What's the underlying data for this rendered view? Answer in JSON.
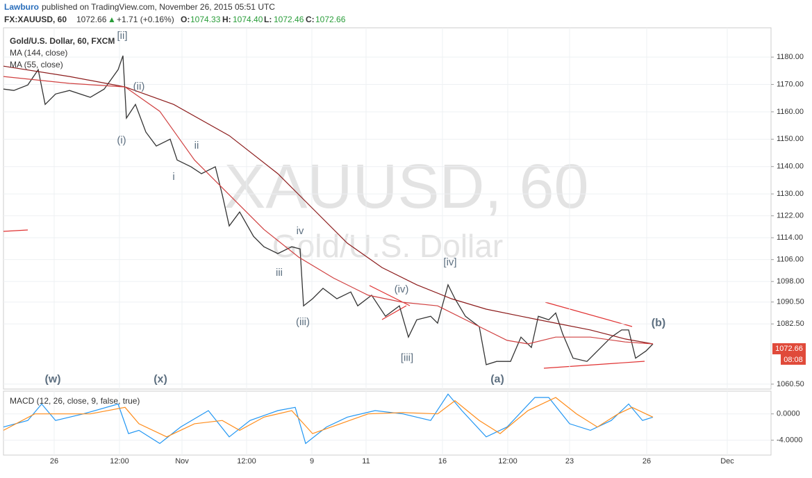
{
  "header": {
    "author": "Lawburo",
    "published": "published on TradingView.com, November 26, 2015 05:51 UTC",
    "symbol": "FX:XAUUSD, 60",
    "last": "1072.66",
    "arrow": "▲",
    "change": "+1.71 (+0.16%)",
    "o_label": "O:",
    "open": "1074.33",
    "h_label": "H:",
    "high": "1074.40",
    "l_label": "L:",
    "low": "1072.46",
    "c_label": "C:",
    "close": "1072.66",
    "countdown": "08:08"
  },
  "watermark": {
    "symbol": "XAUUSD, 60",
    "name": "Gold/U.S. Dollar"
  },
  "chart_data": [
    {
      "type": "line",
      "xlim": [
        0,
        1105
      ],
      "ylim": [
        1058.7,
        1190.7
      ],
      "xticks": [
        {
          "value": 73,
          "label": "26"
        },
        {
          "value": 167,
          "label": "12:00"
        },
        {
          "value": 257,
          "label": "Nov"
        },
        {
          "value": 350,
          "label": "12:00"
        },
        {
          "value": 444,
          "label": "9"
        },
        {
          "value": 522,
          "label": "11"
        },
        {
          "value": 632,
          "label": "16"
        },
        {
          "value": 726,
          "label": "12:00"
        },
        {
          "value": 815,
          "label": "23"
        },
        {
          "value": 926,
          "label": "26"
        },
        {
          "value": 1042,
          "label": "Dec"
        }
      ],
      "yticks": [
        {
          "value": 1180,
          "label": "1180.00"
        },
        {
          "value": 1170,
          "label": "1170.00"
        },
        {
          "value": 1160,
          "label": "1160.00"
        },
        {
          "value": 1150,
          "label": "1150.00"
        },
        {
          "value": 1140,
          "label": "1140.00"
        },
        {
          "value": 1130,
          "label": "1130.00"
        },
        {
          "value": 1122,
          "label": "1122.00"
        },
        {
          "value": 1114,
          "label": "1114.00"
        },
        {
          "value": 1106,
          "label": "1106.00"
        },
        {
          "value": 1098,
          "label": "1098.00"
        },
        {
          "value": 1090.5,
          "label": "1090.50"
        },
        {
          "value": 1082.5,
          "label": "1082.50"
        },
        {
          "value": 1060.5,
          "label": "1060.50"
        }
      ],
      "grid": true,
      "series": [
        {
          "name": "Gold/U.S. Dollar, 60, FXCM",
          "color": "#333333",
          "x": [
            0,
            15,
            35,
            50,
            60,
            75,
            95,
            125,
            145,
            165,
            172,
            177,
            190,
            205,
            220,
            240,
            250,
            270,
            285,
            305,
            315,
            325,
            340,
            360,
            375,
            395,
            415,
            427,
            432,
            445,
            460,
            480,
            500,
            510,
            530,
            550,
            570,
            583,
            595,
            615,
            625,
            640,
            650,
            665,
            685,
            695,
            710,
            730,
            745,
            760,
            770,
            785,
            795,
            805,
            820,
            840,
            855,
            875,
            890,
            900,
            910,
            925,
            935
          ],
          "values": [
            1168.3,
            1167.8,
            1169.8,
            1175.4,
            1162.7,
            1166.5,
            1167.8,
            1165.3,
            1168.3,
            1175.4,
            1180.5,
            1157.7,
            1162.7,
            1152.6,
            1147.5,
            1150,
            1142.4,
            1139.9,
            1137.4,
            1139.9,
            1129.7,
            1118.3,
            1123.4,
            1114.5,
            1110.7,
            1108.2,
            1110.7,
            1109.9,
            1089.1,
            1091.7,
            1095.5,
            1091.7,
            1094.2,
            1089.1,
            1093,
            1085.3,
            1089.1,
            1077.7,
            1084,
            1085.3,
            1082.8,
            1096.8,
            1091.7,
            1085.3,
            1081.5,
            1067.6,
            1068.8,
            1068.8,
            1077.7,
            1073.9,
            1085.3,
            1084,
            1086.5,
            1078.9,
            1070,
            1068.8,
            1072.6,
            1077.7,
            1080.3,
            1080.3,
            1070,
            1072.6,
            1075.2
          ]
        },
        {
          "name": "MA (144, close)",
          "color": "#8b1a1a",
          "x": [
            0,
            95,
            175,
            245,
            325,
            395,
            445,
            495,
            545,
            595,
            645,
            695,
            745,
            795,
            845,
            895,
            935
          ],
          "values": [
            1176.7,
            1172.9,
            1169.1,
            1162.7,
            1151.3,
            1137.4,
            1124.7,
            1112,
            1103.1,
            1096.8,
            1091.7,
            1087.9,
            1085.3,
            1082.8,
            1080.3,
            1077,
            1075.2
          ]
        },
        {
          "name": "MA (55, close)",
          "color": "#d04040",
          "x": [
            0,
            95,
            175,
            225,
            275,
            325,
            375,
            425,
            475,
            525,
            575,
            625,
            675,
            725,
            755,
            795,
            845,
            895,
            935
          ],
          "values": [
            1172.9,
            1170.4,
            1169.1,
            1160.2,
            1142.4,
            1129.7,
            1117,
            1106.9,
            1099.3,
            1093,
            1090.4,
            1089.1,
            1082.8,
            1076.5,
            1075.2,
            1077.7,
            1077.7,
            1075.9,
            1075.2
          ]
        }
      ],
      "annotations": [
        {
          "label": "[ii]",
          "x": 171,
          "y": 1187.6
        },
        {
          "label": "(ii)",
          "x": 195,
          "y": 1169.1
        },
        {
          "label": "(i)",
          "x": 170,
          "y": 1149.5
        },
        {
          "label": "ii",
          "x": 278,
          "y": 1147.5
        },
        {
          "label": "i",
          "x": 245,
          "y": 1136.1
        },
        {
          "label": "iv",
          "x": 427,
          "y": 1116.3
        },
        {
          "label": "iii",
          "x": 397,
          "y": 1101.1
        },
        {
          "label": "(iii)",
          "x": 431,
          "y": 1083
        },
        {
          "label": "(iv)",
          "x": 573,
          "y": 1095
        },
        {
          "label": "[iv]",
          "x": 643,
          "y": 1104.9
        },
        {
          "label": "[iii]",
          "x": 581,
          "y": 1070
        },
        {
          "label": "(a)",
          "x": 711,
          "y": 1062.2
        },
        {
          "label": "(b)",
          "x": 943,
          "y": 1082.8
        },
        {
          "label": "(w)",
          "x": 71,
          "y": 1062.2
        },
        {
          "label": "(x)",
          "x": 226,
          "y": 1062.2
        }
      ]
    },
    {
      "type": "line",
      "title": "MACD (12, 26, close, 9, false, true)",
      "xlim": [
        0,
        1105
      ],
      "ylim": [
        -6.27,
        3.46
      ],
      "yticks": [
        {
          "value": 0,
          "label": "0.0000"
        },
        {
          "value": -4,
          "label": "-4.0000"
        }
      ],
      "series": [
        {
          "name": "MACD",
          "color": "#2196f3",
          "x": [
            0,
            35,
            55,
            75,
            115,
            165,
            180,
            195,
            225,
            255,
            295,
            325,
            355,
            395,
            420,
            435,
            465,
            495,
            535,
            575,
            615,
            640,
            660,
            695,
            725,
            765,
            785,
            815,
            845,
            875,
            900,
            920,
            935
          ],
          "values": [
            -2,
            -1,
            1.5,
            -1,
            0,
            1.5,
            -3,
            -2.5,
            -4.5,
            -2,
            0.5,
            -3.5,
            -1,
            0.5,
            1,
            -4.5,
            -2,
            -0.5,
            0.5,
            0,
            -1,
            3,
            0.5,
            -3.5,
            -2,
            2.5,
            2.5,
            -1.5,
            -2.5,
            -1,
            1.5,
            -1,
            -0.5
          ]
        },
        {
          "name": "Signal",
          "color": "#ff8c1a",
          "x": [
            0,
            45,
            75,
            125,
            175,
            195,
            235,
            275,
            315,
            340,
            375,
            415,
            445,
            485,
            525,
            575,
            625,
            650,
            685,
            715,
            755,
            795,
            825,
            855,
            885,
            905,
            935
          ],
          "values": [
            -2.5,
            0,
            0,
            0,
            1,
            -1.5,
            -3.5,
            -1.5,
            -1,
            -2.5,
            -0.5,
            0.5,
            -3,
            -1.5,
            0,
            0.2,
            0,
            2,
            -1,
            -3,
            0.5,
            2.5,
            0,
            -2,
            0,
            1,
            -0.5
          ]
        }
      ]
    }
  ]
}
